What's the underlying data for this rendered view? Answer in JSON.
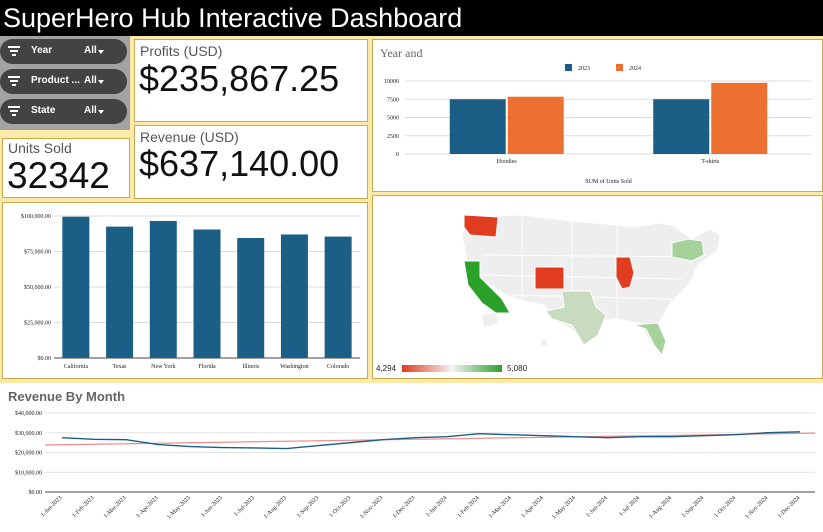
{
  "app": {
    "title": "SuperHero Hub Interactive Dashboard"
  },
  "filters": [
    {
      "label": "Year",
      "value": "All"
    },
    {
      "label": "Product ...",
      "value": "All"
    },
    {
      "label": "State",
      "value": "All"
    }
  ],
  "kpis": {
    "profits": {
      "label": "Profits (USD)",
      "value": "$235,867.25"
    },
    "revenue": {
      "label": "Revenue (USD)",
      "value": "$637,140.00"
    },
    "units": {
      "label": "Units Sold",
      "value": "32342"
    }
  },
  "colors": {
    "primary": "#1b5f86",
    "orange": "#ec7130",
    "map_low": "#e03c1f",
    "map_high": "#2ba02b",
    "trend": "#f28b8b"
  },
  "chart_data": [
    {
      "type": "bar",
      "title": "Year and",
      "xlabel": "SUM of Units Sold",
      "categories": [
        "Hoodies",
        "T-shirts"
      ],
      "series": [
        {
          "name": "2023",
          "values": [
            7500,
            7500
          ]
        },
        {
          "name": "2024",
          "values": [
            7850,
            9750
          ]
        }
      ],
      "ylim": [
        0,
        10000
      ],
      "yticks": [
        "0",
        "2500",
        "5000",
        "7500",
        "10000"
      ],
      "legend": "top"
    },
    {
      "type": "bar",
      "categories": [
        "California",
        "Texas",
        "New York",
        "Florida",
        "Illinois",
        "Washington",
        "Colorado"
      ],
      "values": [
        99500,
        92500,
        96500,
        90500,
        84500,
        87000,
        85500
      ],
      "ylim": [
        0,
        100000
      ],
      "yticks": [
        "$0.00",
        "$25,000.00",
        "$50,000.00",
        "$75,000.00",
        "$100,000.00"
      ]
    },
    {
      "type": "heatmap",
      "legend_min": "4,294",
      "legend_max": "5,080",
      "highlighted_states": [
        "Washington",
        "California",
        "Colorado",
        "Illinois",
        "Texas",
        "Florida",
        "New York"
      ]
    },
    {
      "type": "line",
      "title": "Revenue By Month",
      "x": [
        "1-Jan-2023",
        "1-Feb-2023",
        "1-Mar-2023",
        "1-Apr-2023",
        "1-May-2023",
        "1-Jun-2023",
        "1-Jul-2023",
        "1-Aug-2023",
        "1-Sep-2023",
        "1-Oct-2023",
        "1-Nov-2023",
        "1-Dec-2023",
        "1-Jan-2024",
        "1-Feb-2024",
        "1-Mar-2024",
        "1-Apr-2024",
        "1-May-2024",
        "1-Jun-2024",
        "1-Jul-2024",
        "1-Aug-2024",
        "1-Sep-2024",
        "1-Oct-2024",
        "1-Nov-2024",
        "1-Dec-2024"
      ],
      "series": [
        {
          "values": [
            27500,
            26700,
            26500,
            24000,
            23000,
            22500,
            22300,
            22000,
            23500,
            25000,
            26500,
            27500,
            28000,
            29500,
            29000,
            28500,
            28000,
            27500,
            28000,
            28000,
            28500,
            29000,
            30000,
            30500
          ]
        }
      ],
      "trendline": [
        23800,
        29800
      ],
      "ylim": [
        0,
        40000
      ],
      "yticks": [
        "$0.00",
        "$10,000.00",
        "$20,000.00",
        "$30,000.00",
        "$40,000.00"
      ]
    }
  ]
}
